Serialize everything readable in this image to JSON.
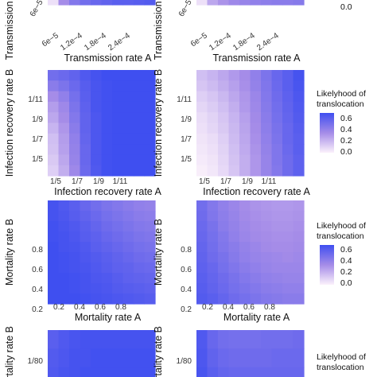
{
  "colors": {
    "low": "#fbf1fb",
    "mid": "#a58ce8",
    "high": "#3f4ff0"
  },
  "legend": {
    "title_line1": "Likelyhood of",
    "title_line2": "translocation",
    "ticks": [
      "0.6",
      "0.4",
      "0.2",
      "0.0"
    ]
  },
  "chart_data": [
    {
      "type": "heatmap",
      "row": 1,
      "column": "left",
      "xlabel": "Transmission rate A",
      "ylabel": "Transmission rate B",
      "x_ticks": [
        "6e−5",
        "1.2e−4",
        "1.8e−4",
        "2.4e−4"
      ],
      "y_ticks": [
        "6e−5"
      ],
      "values": [
        [
          0.05,
          0.3,
          0.4,
          0.45,
          0.48,
          0.5,
          0.52,
          0.52,
          0.53,
          0.54
        ]
      ]
    },
    {
      "type": "heatmap",
      "row": 1,
      "column": "right",
      "xlabel": "Transmission rate A",
      "ylabel": "Transmission rate B",
      "x_ticks": [
        "6e−5",
        "1.2e−4",
        "1.8e−4",
        "2.4e−4"
      ],
      "y_ticks": [
        "6e−5"
      ],
      "values": [
        [
          0.05,
          0.22,
          0.28,
          0.32,
          0.34,
          0.36,
          0.37,
          0.38,
          0.38,
          0.39
        ]
      ]
    },
    {
      "type": "heatmap",
      "row": 2,
      "column": "left",
      "xlabel": "Infection recovery rate A",
      "ylabel": "Infection recovery rate B",
      "x_ticks": [
        "1/5",
        "1/7",
        "1/9",
        "1/11"
      ],
      "y_ticks": [
        "1/11",
        "1/9",
        "1/7",
        "1/5"
      ],
      "values": [
        [
          0.45,
          0.47,
          0.5,
          0.55,
          0.58,
          0.6,
          0.6,
          0.6,
          0.6,
          0.6
        ],
        [
          0.38,
          0.42,
          0.47,
          0.53,
          0.57,
          0.59,
          0.6,
          0.6,
          0.6,
          0.6
        ],
        [
          0.3,
          0.36,
          0.44,
          0.52,
          0.57,
          0.59,
          0.6,
          0.6,
          0.6,
          0.6
        ],
        [
          0.25,
          0.32,
          0.42,
          0.51,
          0.57,
          0.59,
          0.6,
          0.6,
          0.6,
          0.6
        ],
        [
          0.22,
          0.3,
          0.4,
          0.5,
          0.56,
          0.59,
          0.6,
          0.6,
          0.6,
          0.6
        ],
        [
          0.18,
          0.27,
          0.38,
          0.5,
          0.56,
          0.59,
          0.6,
          0.6,
          0.6,
          0.6
        ],
        [
          0.15,
          0.25,
          0.36,
          0.49,
          0.56,
          0.59,
          0.6,
          0.6,
          0.6,
          0.6
        ],
        [
          0.14,
          0.24,
          0.35,
          0.48,
          0.56,
          0.59,
          0.6,
          0.6,
          0.6,
          0.6
        ],
        [
          0.12,
          0.22,
          0.34,
          0.48,
          0.56,
          0.59,
          0.6,
          0.6,
          0.6,
          0.6
        ],
        [
          0.1,
          0.2,
          0.32,
          0.47,
          0.55,
          0.59,
          0.6,
          0.6,
          0.6,
          0.6
        ]
      ]
    },
    {
      "type": "heatmap",
      "row": 2,
      "column": "right",
      "xlabel": "Infection recovery rate A",
      "ylabel": "Infection recovery rate B",
      "x_ticks": [
        "1/5",
        "1/7",
        "1/9",
        "1/11"
      ],
      "y_ticks": [
        "1/11",
        "1/9",
        "1/7",
        "1/5"
      ],
      "values": [
        [
          0.15,
          0.18,
          0.22,
          0.26,
          0.3,
          0.36,
          0.42,
          0.48,
          0.52,
          0.58
        ],
        [
          0.13,
          0.16,
          0.2,
          0.24,
          0.29,
          0.35,
          0.41,
          0.47,
          0.52,
          0.57
        ],
        [
          0.1,
          0.13,
          0.17,
          0.22,
          0.27,
          0.33,
          0.4,
          0.46,
          0.51,
          0.56
        ],
        [
          0.08,
          0.11,
          0.15,
          0.2,
          0.26,
          0.32,
          0.39,
          0.45,
          0.5,
          0.55
        ],
        [
          0.06,
          0.09,
          0.13,
          0.18,
          0.24,
          0.31,
          0.38,
          0.44,
          0.49,
          0.54
        ],
        [
          0.05,
          0.08,
          0.12,
          0.17,
          0.23,
          0.3,
          0.37,
          0.43,
          0.48,
          0.53
        ],
        [
          0.04,
          0.06,
          0.1,
          0.16,
          0.22,
          0.29,
          0.36,
          0.42,
          0.48,
          0.52
        ],
        [
          0.03,
          0.05,
          0.09,
          0.15,
          0.21,
          0.28,
          0.35,
          0.41,
          0.47,
          0.52
        ],
        [
          0.02,
          0.04,
          0.08,
          0.14,
          0.2,
          0.27,
          0.34,
          0.41,
          0.46,
          0.51
        ],
        [
          0.01,
          0.03,
          0.07,
          0.13,
          0.2,
          0.27,
          0.34,
          0.4,
          0.46,
          0.51
        ]
      ]
    },
    {
      "type": "heatmap",
      "row": 3,
      "column": "left",
      "xlabel": "Mortality rate A",
      "ylabel": "Mortality rate B",
      "x_ticks": [
        "0.2",
        "0.4",
        "0.6",
        "0.8"
      ],
      "y_ticks": [
        "0.8",
        "0.6",
        "0.4",
        "0.2"
      ],
      "values": [
        [
          0.58,
          0.55,
          0.52,
          0.48,
          0.45,
          0.42,
          0.4,
          0.38,
          0.36,
          0.35
        ],
        [
          0.58,
          0.56,
          0.53,
          0.5,
          0.47,
          0.44,
          0.42,
          0.4,
          0.38,
          0.37
        ],
        [
          0.59,
          0.57,
          0.55,
          0.52,
          0.49,
          0.46,
          0.44,
          0.42,
          0.4,
          0.39
        ],
        [
          0.59,
          0.58,
          0.56,
          0.53,
          0.51,
          0.48,
          0.46,
          0.44,
          0.42,
          0.41
        ],
        [
          0.6,
          0.58,
          0.57,
          0.55,
          0.52,
          0.5,
          0.48,
          0.46,
          0.44,
          0.43
        ],
        [
          0.6,
          0.59,
          0.58,
          0.56,
          0.54,
          0.52,
          0.5,
          0.48,
          0.46,
          0.45
        ],
        [
          0.6,
          0.59,
          0.58,
          0.57,
          0.55,
          0.53,
          0.51,
          0.5,
          0.48,
          0.47
        ],
        [
          0.6,
          0.6,
          0.59,
          0.58,
          0.56,
          0.55,
          0.53,
          0.51,
          0.5,
          0.49
        ],
        [
          0.6,
          0.6,
          0.59,
          0.58,
          0.57,
          0.56,
          0.54,
          0.53,
          0.52,
          0.51
        ],
        [
          0.6,
          0.6,
          0.6,
          0.59,
          0.58,
          0.57,
          0.56,
          0.55,
          0.54,
          0.53
        ]
      ]
    },
    {
      "type": "heatmap",
      "row": 3,
      "column": "right",
      "xlabel": "Mortality rate A",
      "ylabel": "Mortality rate B",
      "x_ticks": [
        "0.2",
        "0.4",
        "0.6",
        "0.8"
      ],
      "y_ticks": [
        "0.8",
        "0.6",
        "0.4",
        "0.2"
      ],
      "values": [
        [
          0.45,
          0.4,
          0.36,
          0.33,
          0.3,
          0.28,
          0.27,
          0.26,
          0.26,
          0.27
        ],
        [
          0.46,
          0.41,
          0.37,
          0.34,
          0.31,
          0.29,
          0.28,
          0.27,
          0.27,
          0.28
        ],
        [
          0.47,
          0.43,
          0.38,
          0.35,
          0.32,
          0.3,
          0.29,
          0.28,
          0.28,
          0.29
        ],
        [
          0.48,
          0.44,
          0.4,
          0.36,
          0.33,
          0.31,
          0.3,
          0.29,
          0.29,
          0.3
        ],
        [
          0.49,
          0.45,
          0.41,
          0.38,
          0.35,
          0.33,
          0.31,
          0.3,
          0.3,
          0.31
        ],
        [
          0.5,
          0.46,
          0.43,
          0.39,
          0.36,
          0.34,
          0.33,
          0.32,
          0.31,
          0.32
        ],
        [
          0.51,
          0.48,
          0.44,
          0.41,
          0.38,
          0.36,
          0.34,
          0.33,
          0.33,
          0.33
        ],
        [
          0.52,
          0.49,
          0.46,
          0.43,
          0.4,
          0.38,
          0.36,
          0.35,
          0.34,
          0.34
        ],
        [
          0.53,
          0.5,
          0.47,
          0.44,
          0.42,
          0.4,
          0.38,
          0.37,
          0.36,
          0.36
        ],
        [
          0.54,
          0.52,
          0.49,
          0.46,
          0.44,
          0.42,
          0.4,
          0.39,
          0.38,
          0.38
        ]
      ]
    },
    {
      "type": "heatmap",
      "row": 4,
      "column": "left",
      "xlabel": "",
      "ylabel": "Mortality rate B",
      "x_ticks": [],
      "y_ticks": [
        "1/80"
      ],
      "values": [
        [
          0.52,
          0.55,
          0.57,
          0.58,
          0.58,
          0.58,
          0.58,
          0.58,
          0.58,
          0.58
        ],
        [
          0.54,
          0.56,
          0.58,
          0.58,
          0.59,
          0.59,
          0.59,
          0.59,
          0.59,
          0.59
        ],
        [
          0.55,
          0.57,
          0.58,
          0.59,
          0.59,
          0.59,
          0.59,
          0.59,
          0.59,
          0.59
        ]
      ]
    },
    {
      "type": "heatmap",
      "row": 4,
      "column": "right",
      "xlabel": "",
      "ylabel": "Mortality rate B",
      "x_ticks": [],
      "y_ticks": [
        "1/80"
      ],
      "values": [
        [
          0.55,
          0.48,
          0.45,
          0.44,
          0.44,
          0.44,
          0.45,
          0.45,
          0.45,
          0.46
        ],
        [
          0.56,
          0.5,
          0.47,
          0.46,
          0.46,
          0.46,
          0.46,
          0.47,
          0.47,
          0.47
        ],
        [
          0.57,
          0.52,
          0.49,
          0.48,
          0.48,
          0.48,
          0.48,
          0.48,
          0.48,
          0.48
        ]
      ]
    }
  ]
}
